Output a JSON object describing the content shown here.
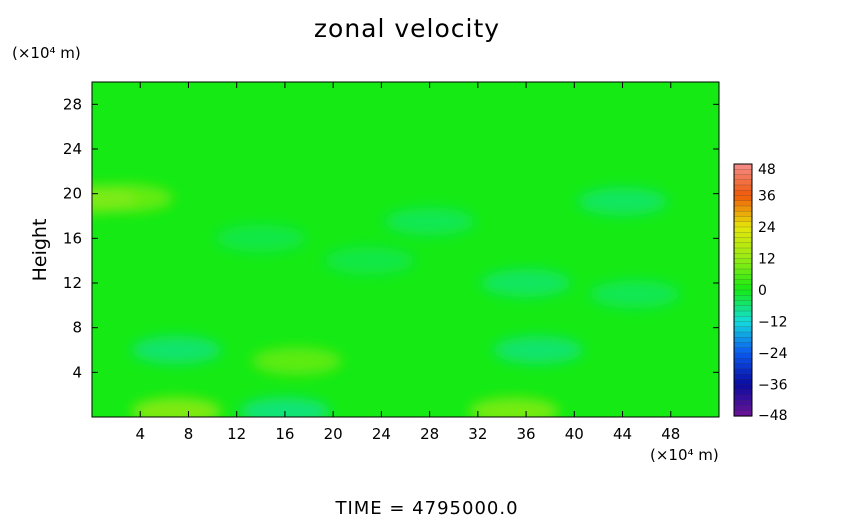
{
  "chart_data": {
    "type": "heatmap",
    "title": "zonal velocity",
    "ylabel": "Height",
    "y_unit": "(×10⁴ m)",
    "x_unit": "(×10⁴ m)",
    "xlim": [
      0,
      52
    ],
    "ylim": [
      0,
      30
    ],
    "x_ticks": [
      4,
      8,
      12,
      16,
      20,
      24,
      28,
      32,
      36,
      40,
      44,
      48
    ],
    "y_ticks": [
      4,
      8,
      12,
      16,
      20,
      24,
      28
    ],
    "colorbar": {
      "min": -48,
      "max": 48,
      "labels": [
        48,
        36,
        24,
        12,
        0,
        -12,
        -24,
        -36,
        -48
      ]
    },
    "field_features": [
      {
        "x": 0,
        "y": 19.5,
        "value": 12
      },
      {
        "x": 3,
        "y": 19.6,
        "value": 10
      },
      {
        "x": 7,
        "y": 0.5,
        "value": 14
      },
      {
        "x": 17,
        "y": 5,
        "value": 9
      },
      {
        "x": 35,
        "y": 0.5,
        "value": 12
      },
      {
        "x": 7,
        "y": 6,
        "value": -7
      },
      {
        "x": 16,
        "y": 0.5,
        "value": -8
      },
      {
        "x": 37,
        "y": 6,
        "value": -7
      },
      {
        "x": 44,
        "y": 19.3,
        "value": -6
      },
      {
        "x": 28,
        "y": 17.5,
        "value": -5
      },
      {
        "x": 36,
        "y": 12,
        "value": -6
      },
      {
        "x": 45,
        "y": 11,
        "value": -5
      },
      {
        "x": 14,
        "y": 16,
        "value": -4
      },
      {
        "x": 23,
        "y": 14,
        "value": -4
      }
    ],
    "grid": false
  },
  "footer": "TIME  =  4795000.0"
}
